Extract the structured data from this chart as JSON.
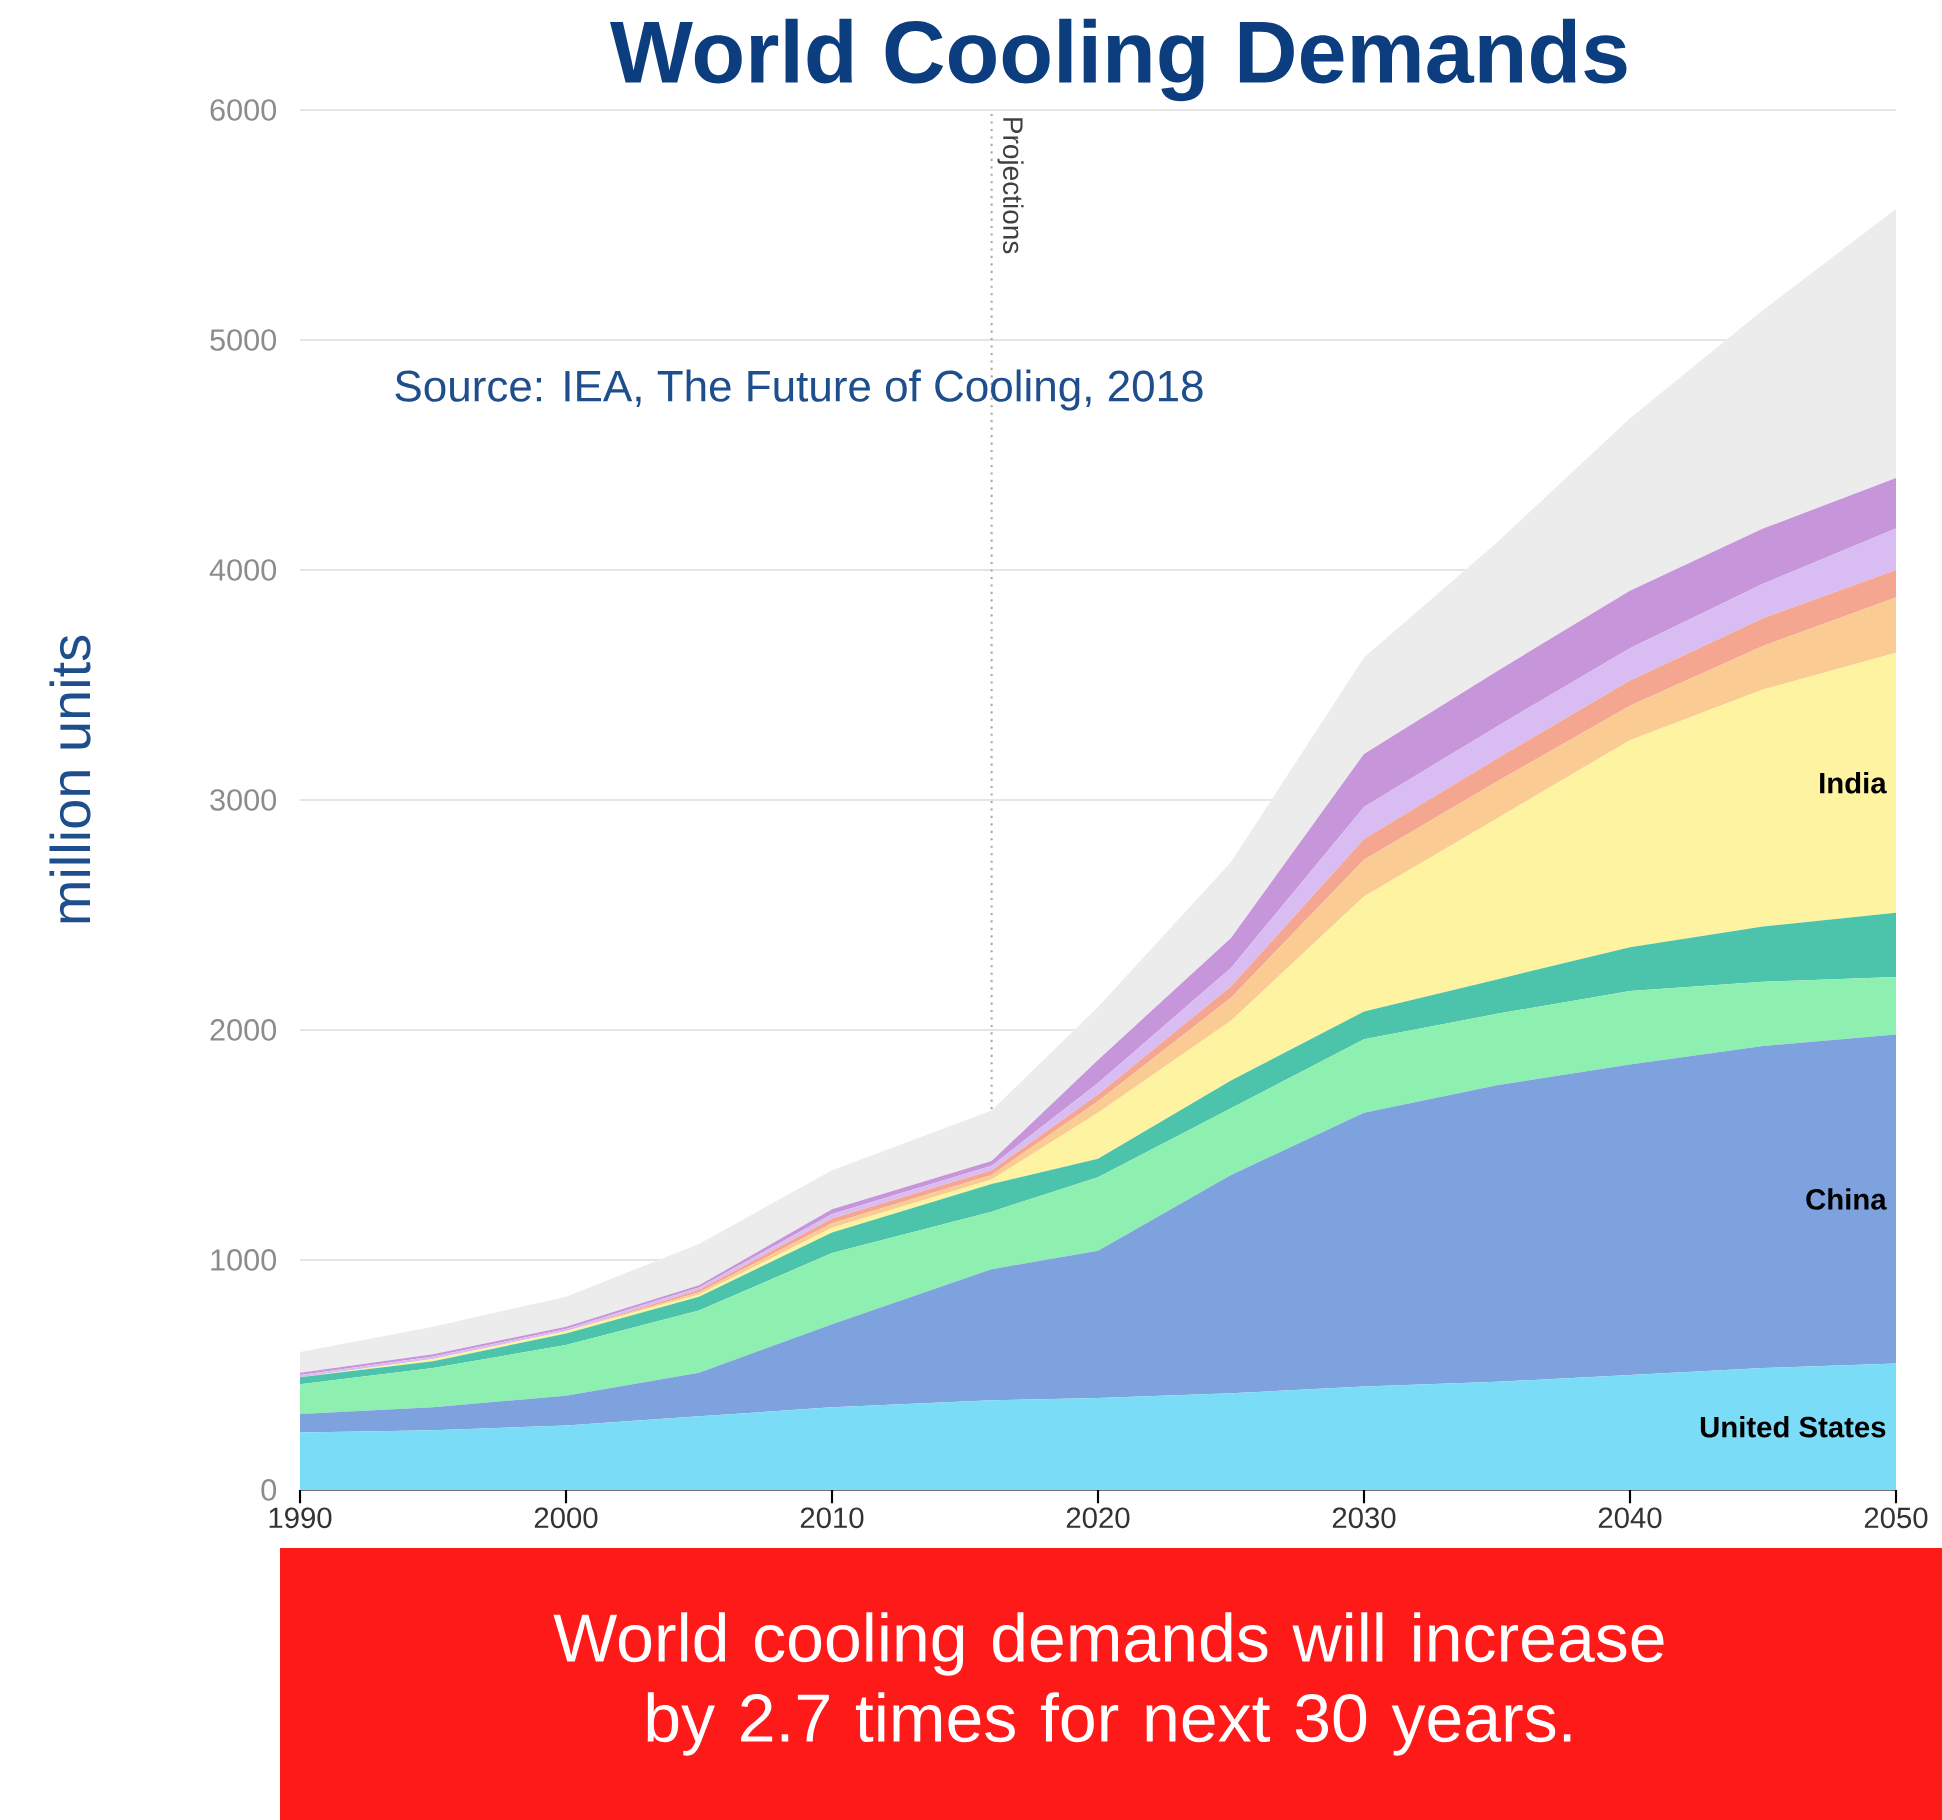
{
  "chart_data": {
    "type": "area",
    "stacked": true,
    "title": "World Cooling Demands",
    "ylabel": "million units",
    "x": [
      1990,
      1995,
      2000,
      2005,
      2010,
      2016,
      2020,
      2025,
      2030,
      2035,
      2040,
      2045,
      2050
    ],
    "series": [
      {
        "name": "United States",
        "color": "#7adcf7",
        "values": [
          250,
          260,
          280,
          320,
          360,
          390,
          400,
          420,
          450,
          470,
          500,
          530,
          550
        ]
      },
      {
        "name": "China",
        "color": "#7ea2de",
        "values": [
          80,
          100,
          130,
          190,
          360,
          570,
          640,
          950,
          1190,
          1290,
          1350,
          1400,
          1430
        ]
      },
      {
        "color": "#8ef0b0",
        "values": [
          130,
          170,
          220,
          270,
          310,
          250,
          320,
          290,
          320,
          310,
          320,
          280,
          250
        ]
      },
      {
        "color": "#4cc4ac",
        "values": [
          30,
          30,
          50,
          60,
          90,
          120,
          80,
          120,
          120,
          150,
          190,
          240,
          280
        ]
      },
      {
        "name": "India",
        "color": "#fdf3a0",
        "values": [
          0,
          10,
          10,
          10,
          20,
          20,
          200,
          260,
          500,
          700,
          900,
          1030,
          1130
        ]
      },
      {
        "color": "#fbcb94",
        "values": [
          0,
          0,
          0,
          10,
          20,
          20,
          50,
          100,
          160,
          160,
          150,
          190,
          240
        ]
      },
      {
        "color": "#f4a690",
        "values": [
          0,
          0,
          0,
          10,
          20,
          20,
          30,
          50,
          90,
          100,
          110,
          120,
          120
        ]
      },
      {
        "color": "#d9bdf2",
        "values": [
          10,
          10,
          10,
          10,
          20,
          20,
          50,
          80,
          140,
          140,
          140,
          150,
          180
        ]
      },
      {
        "color": "#c795d9",
        "values": [
          10,
          10,
          10,
          10,
          20,
          20,
          100,
          130,
          230,
          240,
          250,
          240,
          220
        ]
      },
      {
        "color": "#ececec",
        "values": [
          90,
          120,
          130,
          180,
          170,
          220,
          230,
          330,
          420,
          560,
          750,
          950,
          1170
        ]
      }
    ],
    "xlim": [
      1990,
      2050
    ],
    "ylim": [
      0,
      6000
    ],
    "xticks": [
      1990,
      2000,
      2010,
      2020,
      2030,
      2040,
      2050
    ],
    "yticks": [
      0,
      1000,
      2000,
      3000,
      4000,
      5000,
      6000
    ],
    "grid": "y",
    "ref_lines": [
      {
        "axis": "x",
        "value": 2016,
        "label": "Projections",
        "line_style": "dotted",
        "color": "#aaaaaa"
      }
    ],
    "annotations": [
      "Source: IEA, The Future of Cooling, 2018",
      "World cooling demands will increase by 2.7 times for next 30 years."
    ]
  }
}
